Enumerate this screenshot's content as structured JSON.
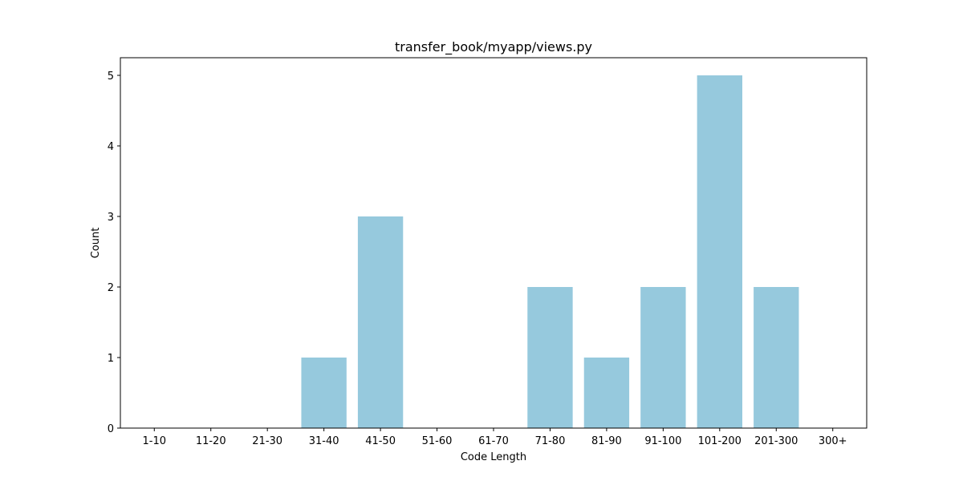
{
  "chart_data": {
    "type": "bar",
    "title": "transfer_book/myapp/views.py",
    "xlabel": "Code Length",
    "ylabel": "Count",
    "categories": [
      "1-10",
      "11-20",
      "21-30",
      "31-40",
      "41-50",
      "51-60",
      "61-70",
      "71-80",
      "81-90",
      "91-100",
      "101-200",
      "201-300",
      "300+"
    ],
    "values": [
      0,
      0,
      0,
      1,
      3,
      0,
      0,
      2,
      1,
      2,
      5,
      2,
      0
    ],
    "ylim": [
      0,
      5.25
    ],
    "yticks": [
      0,
      1,
      2,
      3,
      4,
      5
    ],
    "grid": false,
    "legend": "none",
    "bar_color": "#96c9dd"
  }
}
